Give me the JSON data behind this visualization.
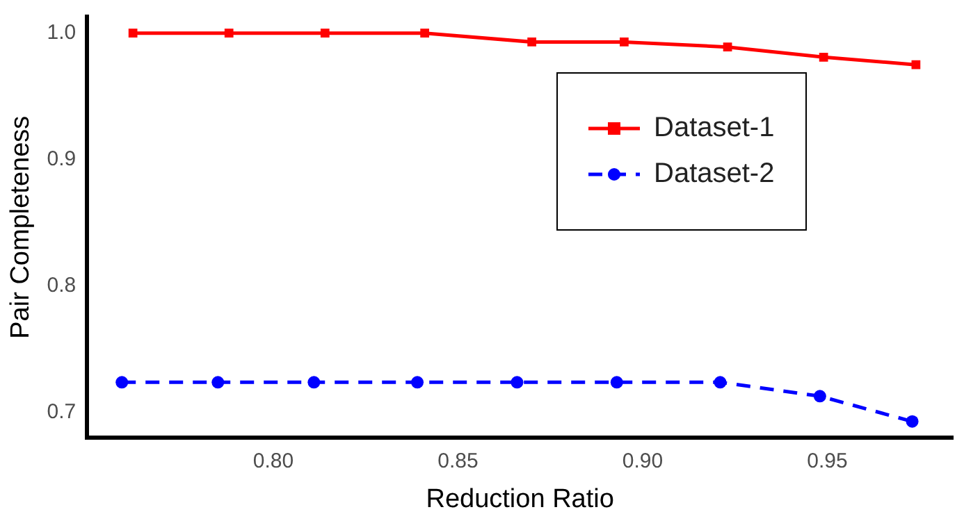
{
  "chart_data": {
    "type": "line",
    "xlabel": "Reduction Ratio",
    "ylabel": "Pair Completeness",
    "xlim": [
      0.7496,
      0.984
    ],
    "xticks": [
      {
        "value": 0.8,
        "label": "0.80"
      },
      {
        "value": 0.85,
        "label": "0.85"
      },
      {
        "value": 0.9,
        "label": "0.90"
      },
      {
        "value": 0.95,
        "label": "0.95"
      }
    ],
    "ylim": [
      0.68,
      1.013
    ],
    "yticks": [
      {
        "value": 0.7,
        "label": "0.7"
      },
      {
        "value": 0.8,
        "label": "0.8"
      },
      {
        "value": 0.9,
        "label": "0.9"
      },
      {
        "value": 1.0,
        "label": "1.0"
      }
    ],
    "grid": false,
    "legend": "top right",
    "series": [
      {
        "name": "Dataset-1",
        "color": "#ff0000",
        "marker": "square",
        "line_style": "solid",
        "x": [
          0.762,
          0.788,
          0.814,
          0.841,
          0.87,
          0.895,
          0.923,
          0.949,
          0.974
        ],
        "values": [
          1.0,
          1.0,
          1.0,
          1.0,
          0.993,
          0.993,
          0.989,
          0.981,
          0.975
        ]
      },
      {
        "name": "Dataset-2",
        "color": "#0000ff",
        "marker": "circle",
        "line_style": "dashed",
        "x": [
          0.759,
          0.785,
          0.811,
          0.839,
          0.866,
          0.893,
          0.921,
          0.948,
          0.973
        ],
        "values": [
          0.724,
          0.724,
          0.724,
          0.724,
          0.724,
          0.724,
          0.724,
          0.713,
          0.693
        ]
      }
    ]
  }
}
